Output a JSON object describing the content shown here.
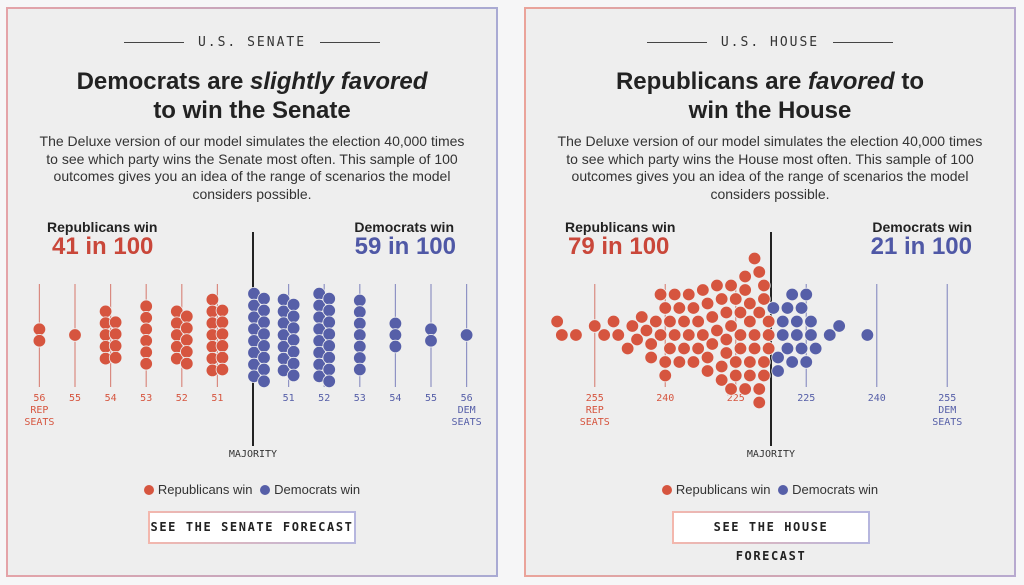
{
  "colors": {
    "rep": "#d6553f",
    "dem": "#565fa8",
    "rep_line": "#d98a80",
    "dem_line": "#8f93c4",
    "majority": "#222222"
  },
  "senate": {
    "kicker": "U.S. SENATE",
    "title": [
      {
        "t": "Democrats are ",
        "i": false
      },
      {
        "t": "slightly",
        "i": true
      },
      {
        "t": " ",
        "i": false
      },
      {
        "t": "favored",
        "i": true
      },
      {
        "t": " to win the Senate",
        "i": false
      }
    ],
    "description": "The Deluxe version of our model simulates the election 40,000 times to see which party wins the Senate most often. This sample of 100 outcomes gives you an idea of the range of scenarios the model considers possible.",
    "rep_label": "Republicans win",
    "rep_value": "41 in 100",
    "dem_label": "Democrats win",
    "dem_value": "59 in 100",
    "majority_label": "MAJORITY",
    "rep_seats_label": [
      "REP",
      "SEATS"
    ],
    "dem_seats_label": [
      "DEM",
      "SEATS"
    ],
    "legend_rep": "Republicans win",
    "legend_dem": "Democrats win",
    "button": "SEE THE SENATE FORECAST"
  },
  "house": {
    "kicker": "U.S. HOUSE",
    "title": [
      {
        "t": "Republicans are ",
        "i": false
      },
      {
        "t": "favored",
        "i": true
      },
      {
        "t": " to win the House",
        "i": false
      }
    ],
    "description": "The Deluxe version of our model simulates the election 40,000 times to see which party wins the House most often. This sample of 100 outcomes gives you an idea of the range of scenarios the model considers possible.",
    "rep_label": "Republicans win",
    "rep_value": "79 in 100",
    "dem_label": "Democrats win",
    "dem_value": "21 in 100",
    "majority_label": "MAJORITY",
    "rep_seats_label": [
      "REP",
      "SEATS"
    ],
    "dem_seats_label": [
      "DEM",
      "SEATS"
    ],
    "legend_rep": "Republicans win",
    "legend_dem": "Democrats win",
    "button": "SEE THE HOUSE FORECAST"
  },
  "chart_data": [
    {
      "type": "scatter",
      "chart": "senate beeswarm",
      "majority": 50,
      "rep_ticks": [
        "56",
        "55",
        "54",
        "53",
        "52",
        "51"
      ],
      "dem_ticks": [
        "51",
        "52",
        "53",
        "54",
        "55",
        "56"
      ],
      "rep_outcomes": [
        {
          "seats": 56,
          "count": 2
        },
        {
          "seats": 55,
          "count": 1
        },
        {
          "seats": 54,
          "count": 9
        },
        {
          "seats": 53,
          "count": 6
        },
        {
          "seats": 52,
          "count": 10
        },
        {
          "seats": 51,
          "count": 13
        }
      ],
      "dem_outcomes": [
        {
          "seats": 50,
          "count": 16
        },
        {
          "seats": 51,
          "count": 14
        },
        {
          "seats": 52,
          "count": 16
        },
        {
          "seats": 53,
          "count": 7
        },
        {
          "seats": 54,
          "count": 3
        },
        {
          "seats": 55,
          "count": 2
        },
        {
          "seats": 56,
          "count": 1
        }
      ]
    },
    {
      "type": "scatter",
      "chart": "house beeswarm",
      "majority": 218,
      "rep_ticks": [
        255,
        240,
        225
      ],
      "dem_ticks": [
        225,
        240,
        255
      ],
      "rep_seats": [
        263,
        262,
        259,
        255,
        253,
        251,
        250,
        248,
        247,
        246,
        245,
        244,
        243,
        243,
        242,
        241,
        241,
        240,
        240,
        240,
        239,
        239,
        238,
        238,
        237,
        237,
        236,
        236,
        235,
        235,
        234,
        234,
        233,
        233,
        232,
        232,
        231,
        231,
        231,
        230,
        230,
        229,
        229,
        228,
        228,
        228,
        227,
        227,
        227,
        226,
        226,
        226,
        225,
        225,
        225,
        224,
        224,
        224,
        223,
        223,
        223,
        222,
        222,
        222,
        222,
        221,
        221,
        221,
        220,
        220,
        220,
        220,
        219,
        219,
        219,
        219,
        218,
        218,
        218
      ],
      "dem_seats": [
        238,
        232,
        230,
        227,
        226,
        226,
        225,
        225,
        224,
        224,
        223,
        223,
        222,
        222,
        221,
        221,
        220,
        220,
        219,
        219,
        218
      ]
    }
  ]
}
